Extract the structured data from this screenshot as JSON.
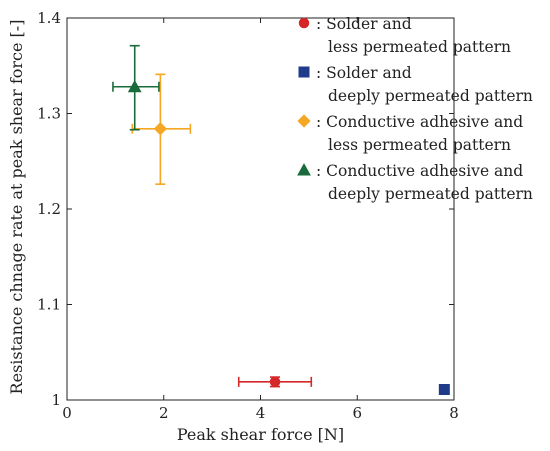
{
  "chart_data": {
    "type": "scatter",
    "title": "",
    "xlabel": "Peak shear force [N]",
    "ylabel": "Resistance chnage rate at peak shear force [-]",
    "xlim": [
      0,
      8
    ],
    "ylim": [
      1,
      1.4
    ],
    "x_ticks": [
      0,
      2,
      4,
      6,
      8
    ],
    "y_ticks": [
      1,
      1.1,
      1.2,
      1.3,
      1.4
    ],
    "x_tick_labels": [
      "0",
      "2",
      "4",
      "6",
      "8"
    ],
    "y_tick_labels": [
      "1",
      "1.1",
      "1.2",
      "1.3",
      "1.4"
    ],
    "grid": false,
    "legend_position": "top-right",
    "series": [
      {
        "name_lines": [
          "Solder and",
          "less permeated pattern"
        ],
        "marker": "circle",
        "color": "#d62728",
        "x": 4.3,
        "y": 1.019,
        "x_err": [
          3.55,
          5.05
        ],
        "y_err": [
          1.014,
          1.024
        ]
      },
      {
        "name_lines": [
          "Solder and",
          "deeply permeated pattern"
        ],
        "marker": "square",
        "color": "#1f3c88",
        "x": 7.8,
        "y": 1.011,
        "x_err": null,
        "y_err": null
      },
      {
        "name_lines": [
          "Conductive adhesive and",
          "less permeated pattern"
        ],
        "marker": "diamond",
        "color": "#f5a623",
        "x": 1.93,
        "y": 1.284,
        "x_err": [
          1.35,
          2.55
        ],
        "y_err": [
          1.226,
          1.341
        ]
      },
      {
        "name_lines": [
          "Conductive adhesive and",
          "deeply permeated pattern"
        ],
        "marker": "triangle",
        "color": "#1a6b3c",
        "x": 1.4,
        "y": 1.328,
        "x_err": [
          0.95,
          1.9
        ],
        "y_err": [
          1.283,
          1.371
        ]
      }
    ]
  }
}
